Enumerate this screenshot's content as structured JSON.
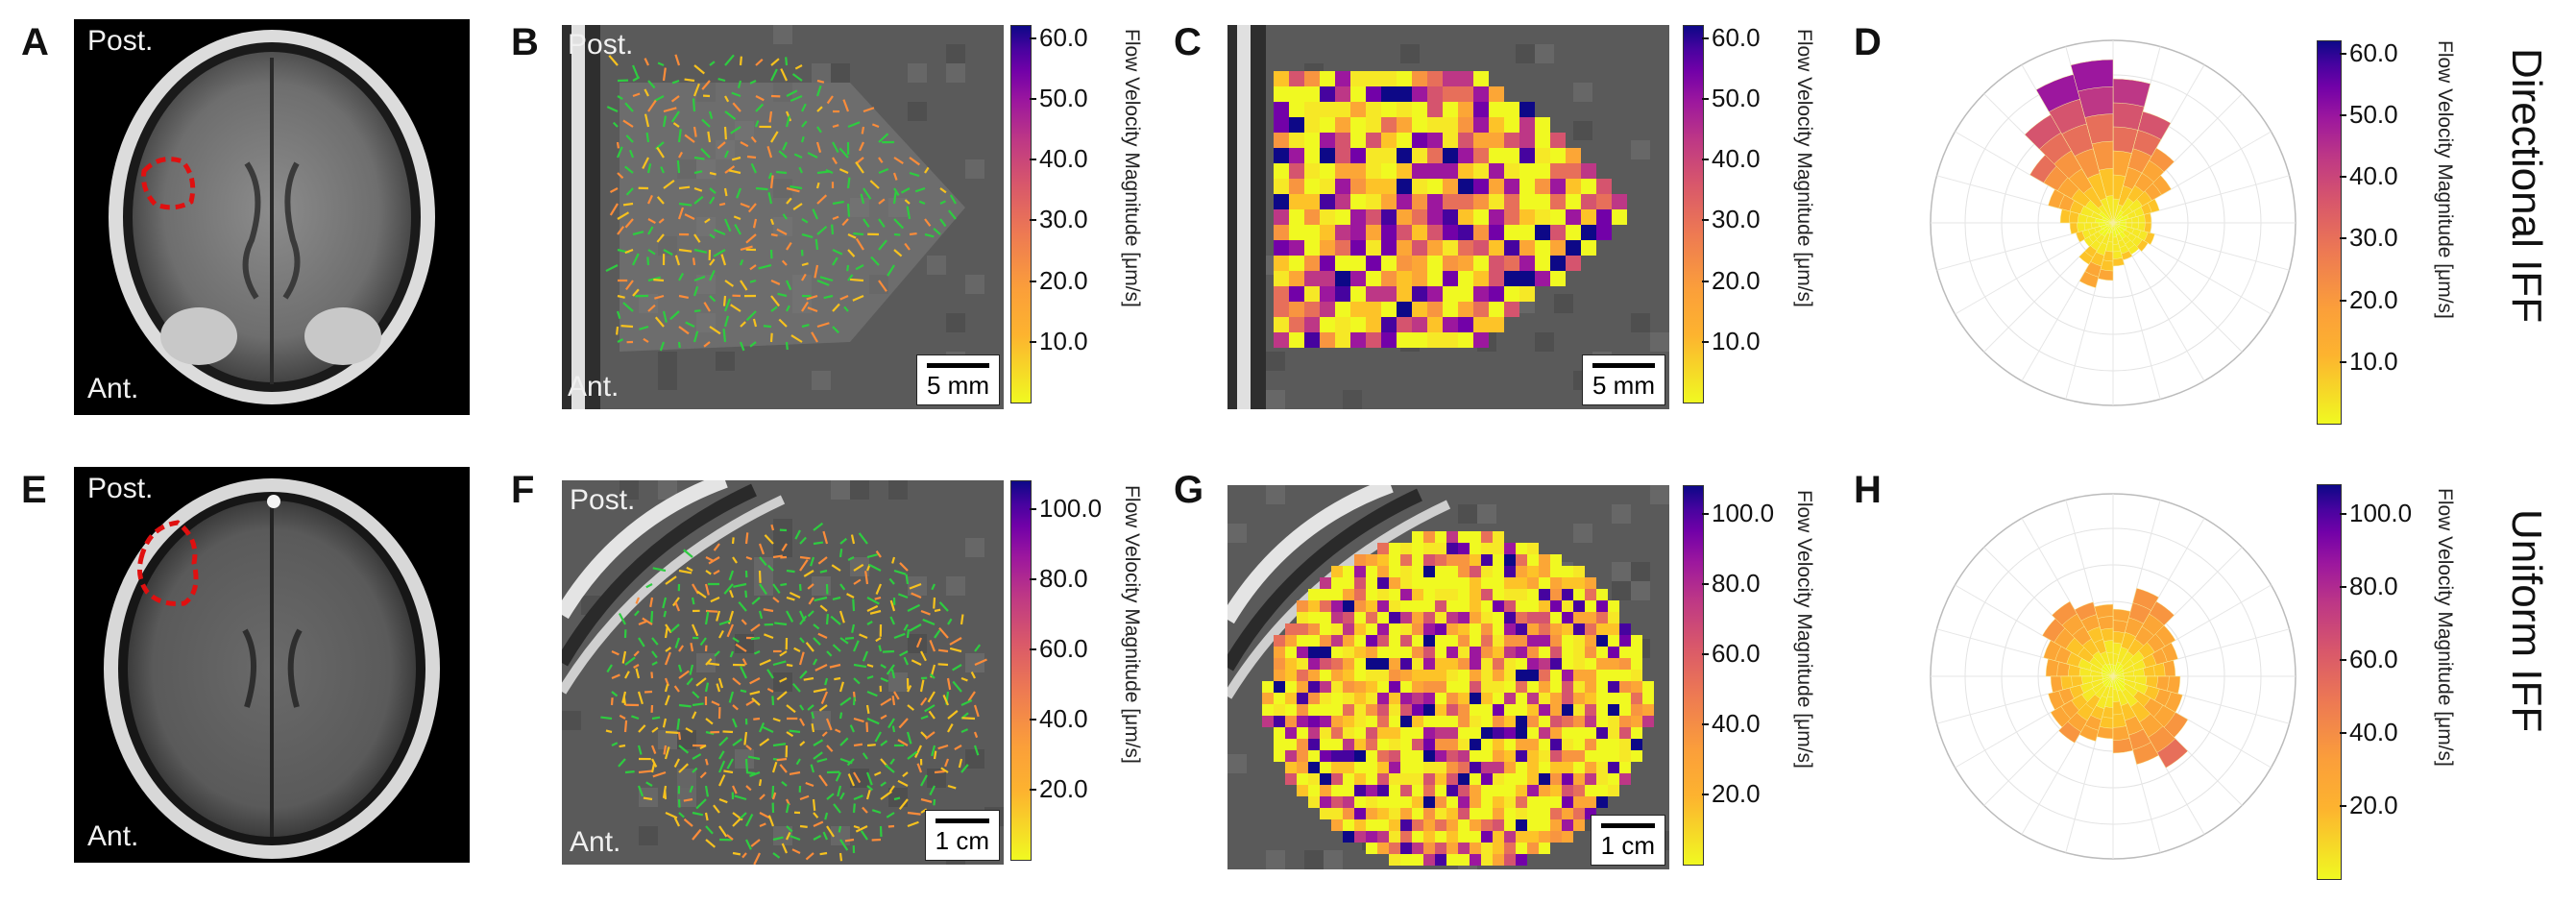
{
  "panels": {
    "A": {
      "letter": "A",
      "top_label": "Post.",
      "bottom_label": "Ant."
    },
    "B": {
      "letter": "B",
      "top_label": "Post.",
      "bottom_label": "Ant.",
      "scale": "5 mm"
    },
    "C": {
      "letter": "C",
      "scale": "5 mm"
    },
    "D": {
      "letter": "D"
    },
    "E": {
      "letter": "E",
      "top_label": "Post.",
      "bottom_label": "Ant."
    },
    "F": {
      "letter": "F",
      "top_label": "Post.",
      "bottom_label": "Ant.",
      "scale": "1 cm"
    },
    "G": {
      "letter": "G",
      "scale": "1 cm"
    },
    "H": {
      "letter": "H"
    }
  },
  "colorbars": {
    "label": "Flow Velocity Magnitude [μm/s]",
    "top_ticks": [
      "60.0",
      "50.0",
      "40.0",
      "30.0",
      "20.0",
      "10.0"
    ],
    "bottom_ticks": [
      "100.0",
      "80.0",
      "60.0",
      "40.0",
      "20.0"
    ]
  },
  "row_labels": {
    "top": "Directional IFF",
    "bottom": "Uniform IFF"
  },
  "colors": {
    "roi_outline": "#e01010",
    "vector": "#2ecc40",
    "yellow": "#f0f921",
    "orange": "#fb9f3a",
    "purple": "#7201a8"
  }
}
